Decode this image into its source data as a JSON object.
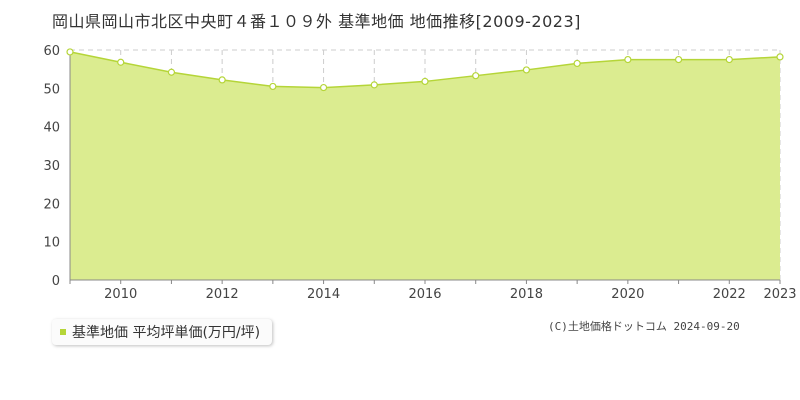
{
  "title": "岡山県岡山市北区中央町４番１０９外 基準地価 地価推移[2009-2023]",
  "legend_label": "基準地価 平均坪単価(万円/坪)",
  "credit": "(C)土地価格ドットコム 2024-09-20",
  "colors": {
    "fill": "#dbec90",
    "line": "#b5d538",
    "grid": "#cccccc",
    "marker_fill": "#ffffff"
  },
  "chart_data": {
    "type": "area",
    "title": "岡山県岡山市北区中央町４番１０９外 基準地価 地価推移[2009-2023]",
    "xlabel": "",
    "ylabel": "",
    "x": [
      2009,
      2010,
      2011,
      2012,
      2013,
      2014,
      2015,
      2016,
      2017,
      2018,
      2019,
      2020,
      2021,
      2022,
      2023
    ],
    "x_tick_labels": [
      "2010",
      "2012",
      "2014",
      "2016",
      "2018",
      "2020",
      "2022",
      "2023"
    ],
    "y_ticks": [
      0,
      10,
      20,
      30,
      40,
      50,
      60
    ],
    "ylim": [
      0,
      60
    ],
    "grid": true,
    "legend_position": "bottom-left",
    "series": [
      {
        "name": "基準地価 平均坪単価(万円/坪)",
        "values": [
          59.5,
          56.8,
          54.2,
          52.2,
          50.5,
          50.2,
          50.9,
          51.8,
          53.3,
          54.8,
          56.5,
          57.5,
          57.5,
          57.5,
          58.2
        ]
      }
    ]
  }
}
